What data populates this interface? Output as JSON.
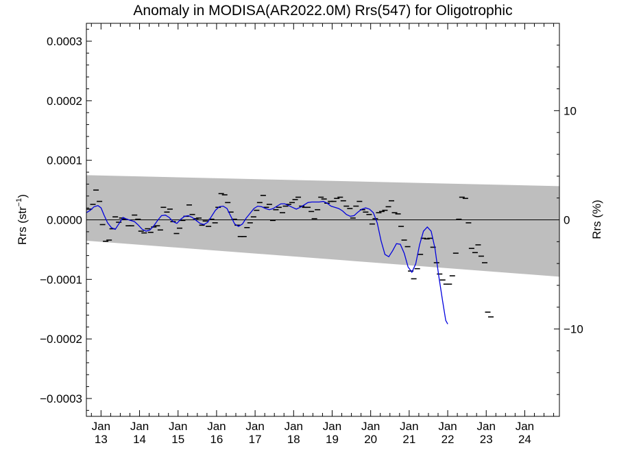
{
  "chart_data": {
    "type": "scatter",
    "title": "Anomaly in MODISA(AR2022.0M) Rrs(547) for Oligotrophic",
    "ylabel": "Rrs (str",
    "ylabel_sup": "−1",
    "ylabel_close": ")",
    "y2label": "Rrs (%)",
    "ylim": [
      -0.00033,
      0.00033
    ],
    "y2lim": [
      -18,
      18
    ],
    "xlim": [
      2012.62,
      2024.9
    ],
    "x_ticks": [
      {
        "x": 2013.0,
        "month": "Jan",
        "year": "13"
      },
      {
        "x": 2014.0,
        "month": "Jan",
        "year": "14"
      },
      {
        "x": 2015.0,
        "month": "Jan",
        "year": "15"
      },
      {
        "x": 2016.0,
        "month": "Jan",
        "year": "16"
      },
      {
        "x": 2017.0,
        "month": "Jan",
        "year": "17"
      },
      {
        "x": 2018.0,
        "month": "Jan",
        "year": "18"
      },
      {
        "x": 2019.0,
        "month": "Jan",
        "year": "19"
      },
      {
        "x": 2020.0,
        "month": "Jan",
        "year": "20"
      },
      {
        "x": 2021.0,
        "month": "Jan",
        "year": "21"
      },
      {
        "x": 2022.0,
        "month": "Jan",
        "year": "22"
      },
      {
        "x": 2023.0,
        "month": "Jan",
        "year": "23"
      },
      {
        "x": 2024.0,
        "month": "Jan",
        "year": "24"
      }
    ],
    "y_ticks": [
      {
        "v": 0.0003,
        "label": "0.0003"
      },
      {
        "v": 0.0002,
        "label": "0.0002"
      },
      {
        "v": 0.0001,
        "label": "0.0001"
      },
      {
        "v": 0.0,
        "label": "0.0000"
      },
      {
        "v": -0.0001,
        "label": "−0.0001"
      },
      {
        "v": -0.0002,
        "label": "−0.0002"
      },
      {
        "v": -0.0003,
        "label": "−0.0003"
      }
    ],
    "y2_ticks": [
      {
        "v": 10,
        "label": "10"
      },
      {
        "v": 0,
        "label": "0"
      },
      {
        "v": -10,
        "label": "−10"
      }
    ],
    "band": {
      "upper": [
        [
          2012.62,
          7.5e-05
        ],
        [
          2024.9,
          5.65e-05
        ]
      ],
      "lower": [
        [
          2012.62,
          -3.5e-05
        ],
        [
          2024.9,
          -9.55e-05
        ]
      ]
    },
    "zero_line": 0,
    "colors": {
      "band": "#bebebe",
      "smooth": "#0000dd",
      "points": "#000000",
      "zero": "#000000"
    },
    "series": [
      {
        "kind": "monthly",
        "points": [
          [
            2012.7,
            1.8e-05
          ],
          [
            2012.79,
            2.6e-05
          ],
          [
            2012.87,
            5e-05
          ],
          [
            2012.96,
            3.1e-05
          ],
          [
            2013.04,
            -8e-06
          ],
          [
            2013.12,
            -3.6e-05
          ],
          [
            2013.21,
            -3.4e-05
          ],
          [
            2013.29,
            -1.5e-05
          ],
          [
            2013.37,
            5e-06
          ],
          [
            2013.46,
            -4e-06
          ],
          [
            2013.54,
            3e-06
          ],
          [
            2013.62,
            1e-06
          ],
          [
            2013.71,
            -1e-05
          ],
          [
            2013.79,
            -1e-05
          ],
          [
            2013.87,
            8e-06
          ],
          [
            2013.96,
            1e-06
          ],
          [
            2014.04,
            -1.9e-05
          ],
          [
            2014.12,
            -2.2e-05
          ],
          [
            2014.21,
            -1.5e-05
          ],
          [
            2014.29,
            -2.1e-05
          ],
          [
            2014.37,
            -1.2e-05
          ],
          [
            2014.46,
            -1e-05
          ],
          [
            2014.54,
            -1.7e-05
          ],
          [
            2014.62,
            2.1e-05
          ],
          [
            2014.71,
            1.3e-05
          ],
          [
            2014.79,
            1.8e-05
          ],
          [
            2014.87,
            -3e-06
          ],
          [
            2014.96,
            -2.3e-05
          ],
          [
            2015.04,
            -1.4e-05
          ],
          [
            2015.12,
            -1e-06
          ],
          [
            2015.21,
            6e-06
          ],
          [
            2015.29,
            2.5e-05
          ],
          [
            2015.37,
            9e-06
          ],
          [
            2015.46,
            2e-06
          ],
          [
            2015.54,
            3e-06
          ],
          [
            2015.62,
            -9e-06
          ],
          [
            2015.71,
            -2e-06
          ],
          [
            2015.79,
            -1.1e-05
          ],
          [
            2015.87,
            1e-06
          ],
          [
            2015.96,
            -5e-06
          ],
          [
            2016.04,
            2.1e-05
          ],
          [
            2016.12,
            4.4e-05
          ],
          [
            2016.21,
            4.2e-05
          ],
          [
            2016.29,
            2.9e-05
          ],
          [
            2016.37,
            1.3e-05
          ],
          [
            2016.46,
            1e-06
          ],
          [
            2016.54,
            -9e-06
          ],
          [
            2016.62,
            -2.8e-05
          ],
          [
            2016.71,
            -2.8e-05
          ],
          [
            2016.79,
            -1.3e-05
          ],
          [
            2016.87,
            -5e-06
          ],
          [
            2016.96,
            5e-06
          ],
          [
            2017.04,
            1.6e-05
          ],
          [
            2017.12,
            2.9e-05
          ],
          [
            2017.21,
            4.1e-05
          ],
          [
            2017.29,
            2.1e-05
          ],
          [
            2017.37,
            2.6e-05
          ],
          [
            2017.46,
            -1e-06
          ],
          [
            2017.54,
            1.7e-05
          ],
          [
            2017.62,
            2.1e-05
          ],
          [
            2017.71,
            1.2e-05
          ],
          [
            2017.79,
            2.3e-05
          ],
          [
            2017.87,
            2.6e-05
          ],
          [
            2017.96,
            2.9e-05
          ],
          [
            2018.04,
            3.4e-05
          ],
          [
            2018.12,
            3.8e-05
          ],
          [
            2018.21,
            2.3e-05
          ],
          [
            2018.29,
            2.1e-05
          ],
          [
            2018.37,
            2.1e-05
          ],
          [
            2018.46,
            1.4e-05
          ],
          [
            2018.54,
            2e-06
          ],
          [
            2018.62,
            1.7e-05
          ],
          [
            2018.71,
            3.8e-05
          ],
          [
            2018.79,
            3.5e-05
          ],
          [
            2018.87,
            2.8e-05
          ],
          [
            2018.96,
            3.1e-05
          ],
          [
            2019.04,
            3.1e-05
          ],
          [
            2019.12,
            3.6e-05
          ],
          [
            2019.21,
            3.8e-05
          ],
          [
            2019.29,
            3.2e-05
          ],
          [
            2019.37,
            2.3e-05
          ],
          [
            2019.46,
            1.9e-05
          ],
          [
            2019.54,
            3e-06
          ],
          [
            2019.62,
            2.3e-05
          ],
          [
            2019.71,
            3.1e-05
          ],
          [
            2019.79,
            1.7e-05
          ],
          [
            2019.87,
            1.3e-05
          ],
          [
            2019.96,
            9e-06
          ],
          [
            2020.04,
            -7e-06
          ],
          [
            2020.12,
            2e-06
          ],
          [
            2020.21,
            1.2e-05
          ],
          [
            2020.29,
            1.4e-05
          ],
          [
            2020.37,
            1.6e-05
          ],
          [
            2020.46,
            2.2e-05
          ],
          [
            2020.54,
            3.2e-05
          ],
          [
            2020.62,
            1.2e-05
          ],
          [
            2020.71,
            1e-05
          ],
          [
            2020.79,
            -1.1e-05
          ],
          [
            2020.87,
            -3.4e-05
          ],
          [
            2020.96,
            -4.5e-05
          ],
          [
            2021.04,
            -8.6e-05
          ],
          [
            2021.12,
            -9.9e-05
          ],
          [
            2021.21,
            -8.2e-05
          ],
          [
            2021.29,
            -5.8e-05
          ],
          [
            2021.37,
            -3.1e-05
          ],
          [
            2021.46,
            -3.2e-05
          ],
          [
            2021.54,
            -3.1e-05
          ],
          [
            2021.62,
            -4.6e-05
          ],
          [
            2021.71,
            -7.2e-05
          ],
          [
            2021.79,
            -9.1e-05
          ],
          [
            2021.87,
            -0.000101
          ],
          [
            2021.96,
            -0.000108
          ],
          [
            2022.04,
            -0.000108
          ],
          [
            2022.12,
            -9.4e-05
          ],
          [
            2022.21,
            -5.6e-05
          ],
          [
            2022.29,
            1e-06
          ],
          [
            2022.37,
            3.8e-05
          ],
          [
            2022.46,
            3.6e-05
          ],
          [
            2022.54,
            -5e-06
          ],
          [
            2022.62,
            -4.8e-05
          ],
          [
            2022.71,
            -5.5e-05
          ],
          [
            2022.79,
            -4.2e-05
          ],
          [
            2022.87,
            -6.1e-05
          ],
          [
            2022.96,
            -7.2e-05
          ],
          [
            2023.04,
            -0.000155
          ],
          [
            2023.12,
            -0.000163
          ]
        ]
      },
      {
        "kind": "smoothed",
        "points": [
          [
            2012.62,
            1.2e-05
          ],
          [
            2012.72,
            1.6e-05
          ],
          [
            2012.82,
            2.2e-05
          ],
          [
            2012.92,
            2.4e-05
          ],
          [
            2013.0,
            2e-05
          ],
          [
            2013.08,
            8e-06
          ],
          [
            2013.17,
            -5e-06
          ],
          [
            2013.27,
            -1.3e-05
          ],
          [
            2013.37,
            -1.6e-05
          ],
          [
            2013.47,
            -6e-06
          ],
          [
            2013.57,
            4e-06
          ],
          [
            2013.67,
            1e-06
          ],
          [
            2013.77,
            -1e-06
          ],
          [
            2013.87,
            -3e-06
          ],
          [
            2013.97,
            -9e-06
          ],
          [
            2014.07,
            -1.6e-05
          ],
          [
            2014.17,
            -1.9e-05
          ],
          [
            2014.27,
            -1.7e-05
          ],
          [
            2014.37,
            -1e-05
          ],
          [
            2014.47,
            -1e-06
          ],
          [
            2014.57,
            7e-06
          ],
          [
            2014.67,
            8e-06
          ],
          [
            2014.77,
            4e-06
          ],
          [
            2014.87,
            -3e-06
          ],
          [
            2014.97,
            -6e-06
          ],
          [
            2015.07,
            1e-06
          ],
          [
            2015.17,
            6e-06
          ],
          [
            2015.27,
            7e-06
          ],
          [
            2015.37,
            4e-06
          ],
          [
            2015.47,
            -1e-06
          ],
          [
            2015.57,
            -6e-06
          ],
          [
            2015.67,
            -8e-06
          ],
          [
            2015.77,
            -4e-06
          ],
          [
            2015.87,
            6e-06
          ],
          [
            2015.97,
            1.6e-05
          ],
          [
            2016.07,
            2.2e-05
          ],
          [
            2016.17,
            2.3e-05
          ],
          [
            2016.27,
            1.9e-05
          ],
          [
            2016.37,
            6e-06
          ],
          [
            2016.47,
            -7e-06
          ],
          [
            2016.57,
            -1.1e-05
          ],
          [
            2016.67,
            -7e-06
          ],
          [
            2016.77,
            3e-06
          ],
          [
            2016.87,
            1.1e-05
          ],
          [
            2016.97,
            1.9e-05
          ],
          [
            2017.07,
            2.3e-05
          ],
          [
            2017.17,
            2.2e-05
          ],
          [
            2017.27,
            1.9e-05
          ],
          [
            2017.37,
            1.7e-05
          ],
          [
            2017.47,
            1.9e-05
          ],
          [
            2017.57,
            2.3e-05
          ],
          [
            2017.67,
            2.7e-05
          ],
          [
            2017.77,
            2.7e-05
          ],
          [
            2017.87,
            2.4e-05
          ],
          [
            2017.97,
            2.1e-05
          ],
          [
            2018.07,
            1.8e-05
          ],
          [
            2018.17,
            2.1e-05
          ],
          [
            2018.27,
            2.5e-05
          ],
          [
            2018.37,
            2.9e-05
          ],
          [
            2018.47,
            3e-05
          ],
          [
            2018.57,
            3e-05
          ],
          [
            2018.67,
            3e-05
          ],
          [
            2018.77,
            3.1e-05
          ],
          [
            2018.87,
            2.8e-05
          ],
          [
            2018.97,
            2.3e-05
          ],
          [
            2019.07,
            2.1e-05
          ],
          [
            2019.17,
            1.9e-05
          ],
          [
            2019.27,
            1.5e-05
          ],
          [
            2019.37,
            9e-06
          ],
          [
            2019.47,
            6e-06
          ],
          [
            2019.57,
            7e-06
          ],
          [
            2019.67,
            1.3e-05
          ],
          [
            2019.77,
            1.8e-05
          ],
          [
            2019.87,
            2e-05
          ],
          [
            2019.97,
            1.8e-05
          ],
          [
            2020.07,
            1.2e-05
          ],
          [
            2020.17,
            -5e-06
          ],
          [
            2020.27,
            -3.5e-05
          ],
          [
            2020.37,
            -5.8e-05
          ],
          [
            2020.47,
            -6.2e-05
          ],
          [
            2020.57,
            -5.2e-05
          ],
          [
            2020.67,
            -4e-05
          ],
          [
            2020.77,
            -4.1e-05
          ],
          [
            2020.87,
            -5.6e-05
          ],
          [
            2020.97,
            -7.9e-05
          ],
          [
            2021.07,
            -8.8e-05
          ],
          [
            2021.17,
            -7.4e-05
          ],
          [
            2021.27,
            -4.2e-05
          ],
          [
            2021.37,
            -1.9e-05
          ],
          [
            2021.47,
            -1.2e-05
          ],
          [
            2021.57,
            -1.9e-05
          ],
          [
            2021.67,
            -4.8e-05
          ],
          [
            2021.77,
            -9.5e-05
          ],
          [
            2021.87,
            -0.000137
          ],
          [
            2021.95,
            -0.000169
          ],
          [
            2022.0,
            -0.000175
          ]
        ]
      }
    ]
  }
}
